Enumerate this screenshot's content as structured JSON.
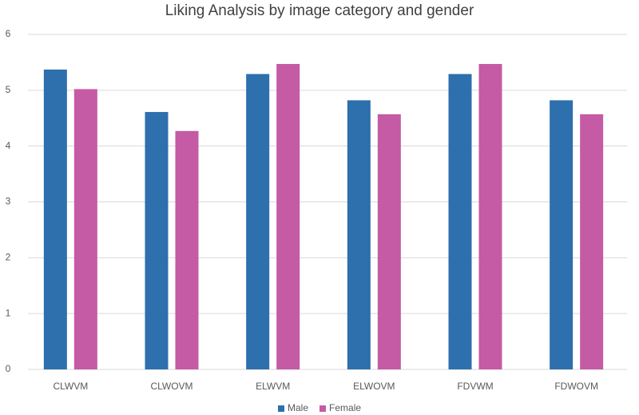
{
  "chart_data": {
    "type": "bar",
    "title": "Liking Analysis by image category and gender",
    "categories": [
      "CLWVM",
      "CLWOVM",
      "ELWVM",
      "ELWOVM",
      "FDVWM",
      "FDWOVM"
    ],
    "series": [
      {
        "name": "Male",
        "color": "#2e6fad",
        "values": [
          5.37,
          4.61,
          5.29,
          4.82,
          5.29,
          4.82
        ]
      },
      {
        "name": "Female",
        "color": "#c55aa5",
        "values": [
          5.02,
          4.27,
          5.47,
          4.57,
          5.47,
          4.57
        ]
      }
    ],
    "ylim": [
      0,
      6
    ],
    "yticks": [
      0,
      1,
      2,
      3,
      4,
      5,
      6
    ],
    "grid": true,
    "legend": "bottom"
  }
}
